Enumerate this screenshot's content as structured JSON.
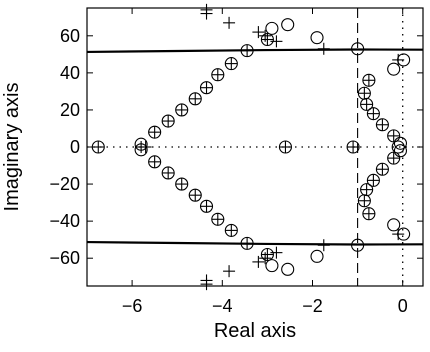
{
  "chart_data": {
    "type": "scatter",
    "title": "",
    "xlabel": "Real axis",
    "ylabel": "Imaginary axis",
    "xlim": [
      -7.0,
      0.45
    ],
    "ylim": [
      -75,
      75
    ],
    "xticks": [
      -6,
      -4,
      -2,
      0
    ],
    "yticks": [
      60,
      40,
      20,
      0,
      -20,
      -40,
      -60
    ],
    "xtick_labels": [
      "−6",
      "−4",
      "−2",
      "0"
    ],
    "ytick_labels": [
      "60",
      "40",
      "20",
      "0",
      "−20",
      "−40",
      "−60"
    ],
    "grid": false,
    "legend": "none",
    "reference_lines": [
      {
        "orientation": "vertical",
        "x": -1.0,
        "style": "dashed"
      },
      {
        "orientation": "vertical",
        "x": 0.0,
        "style": "dotted"
      },
      {
        "orientation": "horizontal",
        "y": 0.0,
        "style": "dotted"
      }
    ],
    "boundary_curves": [
      {
        "points": [
          [
            -7.0,
            51.3
          ],
          [
            -5.0,
            51.8
          ],
          [
            -3.0,
            52.3
          ],
          [
            -1.0,
            52.6
          ],
          [
            0.45,
            52.5
          ]
        ]
      },
      {
        "points": [
          [
            -7.0,
            -51.3
          ],
          [
            -5.0,
            -51.8
          ],
          [
            -3.0,
            -52.3
          ],
          [
            -1.0,
            -52.6
          ],
          [
            0.45,
            -52.5
          ]
        ]
      }
    ],
    "series": [
      {
        "marker": "circle",
        "points": [
          [
            -6.75,
            0
          ],
          [
            -5.8,
            1.5
          ],
          [
            -5.8,
            -1.5
          ],
          [
            -2.6,
            0
          ],
          [
            -1.1,
            0
          ],
          [
            -0.1,
            0
          ],
          [
            -5.5,
            8
          ],
          [
            -5.2,
            14
          ],
          [
            -4.9,
            20
          ],
          [
            -4.6,
            26
          ],
          [
            -4.35,
            32
          ],
          [
            -4.1,
            39
          ],
          [
            -3.8,
            45
          ],
          [
            -3.45,
            52
          ],
          [
            -3.0,
            58
          ],
          [
            -5.5,
            -8
          ],
          [
            -5.2,
            -14
          ],
          [
            -4.9,
            -20
          ],
          [
            -4.6,
            -26
          ],
          [
            -4.35,
            -32
          ],
          [
            -4.1,
            -39
          ],
          [
            -3.8,
            -45
          ],
          [
            -3.45,
            -52
          ],
          [
            -3.0,
            -58
          ],
          [
            -2.9,
            64
          ],
          [
            -2.55,
            66
          ],
          [
            -1.9,
            59
          ],
          [
            -1.0,
            53
          ],
          [
            0.02,
            47
          ],
          [
            -0.2,
            42
          ],
          [
            -2.9,
            -64
          ],
          [
            -2.55,
            -66
          ],
          [
            -1.9,
            -59
          ],
          [
            -1.0,
            -53
          ],
          [
            0.02,
            -47
          ],
          [
            -0.2,
            -42
          ],
          [
            -0.85,
            29
          ],
          [
            -0.8,
            23
          ],
          [
            -0.75,
            36
          ],
          [
            -0.65,
            18
          ],
          [
            -0.45,
            12
          ],
          [
            -0.2,
            6
          ],
          [
            -0.05,
            2
          ],
          [
            -0.85,
            -29
          ],
          [
            -0.8,
            -23
          ],
          [
            -0.75,
            -36
          ],
          [
            -0.65,
            -18
          ],
          [
            -0.45,
            -12
          ],
          [
            -0.2,
            -6
          ],
          [
            -0.05,
            -2
          ]
        ]
      },
      {
        "marker": "plus",
        "points": [
          [
            -6.75,
            0
          ],
          [
            -5.8,
            0
          ],
          [
            -5.7,
            0
          ],
          [
            -2.6,
            0
          ],
          [
            -1.1,
            0
          ],
          [
            -5.5,
            8
          ],
          [
            -5.2,
            14
          ],
          [
            -4.9,
            20
          ],
          [
            -4.6,
            26
          ],
          [
            -4.35,
            32
          ],
          [
            -4.1,
            39
          ],
          [
            -3.8,
            45
          ],
          [
            -3.45,
            52
          ],
          [
            -3.0,
            58
          ],
          [
            -5.5,
            -8
          ],
          [
            -5.2,
            -14
          ],
          [
            -4.9,
            -20
          ],
          [
            -4.6,
            -26
          ],
          [
            -4.35,
            -32
          ],
          [
            -4.1,
            -39
          ],
          [
            -3.8,
            -45
          ],
          [
            -3.45,
            -52
          ],
          [
            -3.0,
            -58
          ],
          [
            -4.35,
            74
          ],
          [
            -4.35,
            72
          ],
          [
            -3.85,
            67
          ],
          [
            -3.2,
            62
          ],
          [
            -3.05,
            60
          ],
          [
            -2.8,
            57
          ],
          [
            -1.75,
            53
          ],
          [
            -4.35,
            -74
          ],
          [
            -4.35,
            -72
          ],
          [
            -3.85,
            -67
          ],
          [
            -3.2,
            -62
          ],
          [
            -3.05,
            -60
          ],
          [
            -2.8,
            -57
          ],
          [
            -1.75,
            -53
          ],
          [
            -0.85,
            29
          ],
          [
            -0.8,
            23
          ],
          [
            -0.75,
            36
          ],
          [
            -0.65,
            18
          ],
          [
            -0.45,
            12
          ],
          [
            -0.2,
            6
          ],
          [
            -0.85,
            -29
          ],
          [
            -0.8,
            -23
          ],
          [
            -0.75,
            -36
          ],
          [
            -0.65,
            -18
          ],
          [
            -0.45,
            -12
          ],
          [
            -0.2,
            -6
          ],
          [
            -0.1,
            47
          ],
          [
            -0.1,
            -47
          ]
        ]
      }
    ]
  }
}
